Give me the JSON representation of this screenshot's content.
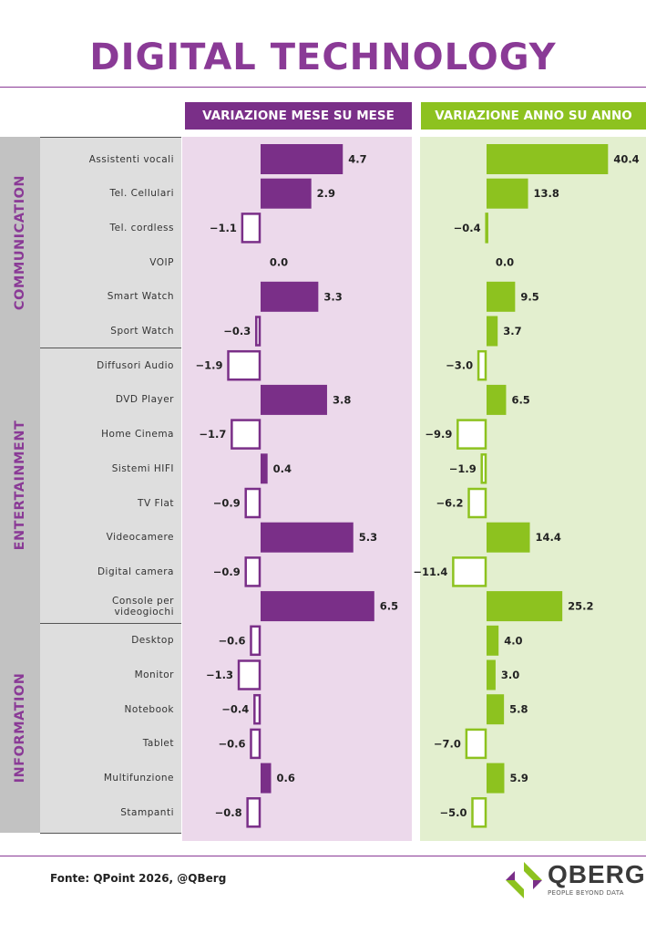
{
  "title": "DIGITAL TECHNOLOGY",
  "source": "Fonte: QPoint 2026, @QBerg",
  "logo": {
    "name": "QBERG",
    "tagline": "PEOPLE BEYOND DATA"
  },
  "colors": {
    "mom": "#7a2f88",
    "yoy": "#8dc21f"
  },
  "chart_data": [
    {
      "type": "bar",
      "orientation": "horizontal",
      "title": "VARIAZIONE MESE SU MESE",
      "categories": [
        "Assistenti vocali",
        "Tel. Cellulari",
        "Tel. cordless",
        "VOIP",
        "Smart Watch",
        "Sport Watch",
        "Diffusori Audio",
        "DVD Player",
        "Home Cinema",
        "Sistemi HIFI",
        "TV Flat",
        "Videocamere",
        "Digital camera",
        "Console per videogiochi",
        "Desktop",
        "Monitor",
        "Notebook",
        "Tablet",
        "Multifunzione",
        "Stampanti"
      ],
      "groups": [
        {
          "name": "COMMUNICATION",
          "count": 6
        },
        {
          "name": "ENTERTAINMENT",
          "count": 8
        },
        {
          "name": "INFORMATION",
          "count": 6
        }
      ],
      "values": [
        4.7,
        2.9,
        -1.1,
        0.0,
        3.3,
        -0.3,
        -1.9,
        3.8,
        -1.7,
        0.4,
        -0.9,
        5.3,
        -0.9,
        6.5,
        -0.6,
        -1.3,
        -0.4,
        -0.6,
        0.6,
        -0.8
      ],
      "value_labels": [
        "4.7",
        "2.9",
        "−1.1",
        "0.0",
        "3.3",
        "−0.3",
        "−1.9",
        "3.8",
        "−1.7",
        "0.4",
        "−0.9",
        "5.3",
        "−0.9",
        "6.5",
        "−0.6",
        "−1.3",
        "−0.4",
        "−0.6",
        "0.6",
        "−0.8"
      ]
    },
    {
      "type": "bar",
      "orientation": "horizontal",
      "title": "VARIAZIONE ANNO SU ANNO",
      "categories": [
        "Assistenti vocali",
        "Tel. Cellulari",
        "Tel. cordless",
        "VOIP",
        "Smart Watch",
        "Sport Watch",
        "Diffusori Audio",
        "DVD Player",
        "Home Cinema",
        "Sistemi HIFI",
        "TV Flat",
        "Videocamere",
        "Digital camera",
        "Console per videogiochi",
        "Desktop",
        "Monitor",
        "Notebook",
        "Tablet",
        "Multifunzione",
        "Stampanti"
      ],
      "values": [
        40.4,
        13.8,
        -0.4,
        0.0,
        9.5,
        3.7,
        -3.0,
        6.5,
        -9.9,
        -1.9,
        -6.2,
        14.4,
        -11.4,
        25.2,
        4.0,
        3.0,
        5.8,
        -7.0,
        5.9,
        -5.0
      ],
      "value_labels": [
        "40.4",
        "13.8",
        "−0.4",
        "0.0",
        "9.5",
        "3.7",
        "−3.0",
        "6.5",
        "−9.9",
        "−1.9",
        "−6.2",
        "14.4",
        "−11.4",
        "25.2",
        "4.0",
        "3.0",
        "5.8",
        "−7.0",
        "5.9",
        "−5.0"
      ]
    }
  ]
}
